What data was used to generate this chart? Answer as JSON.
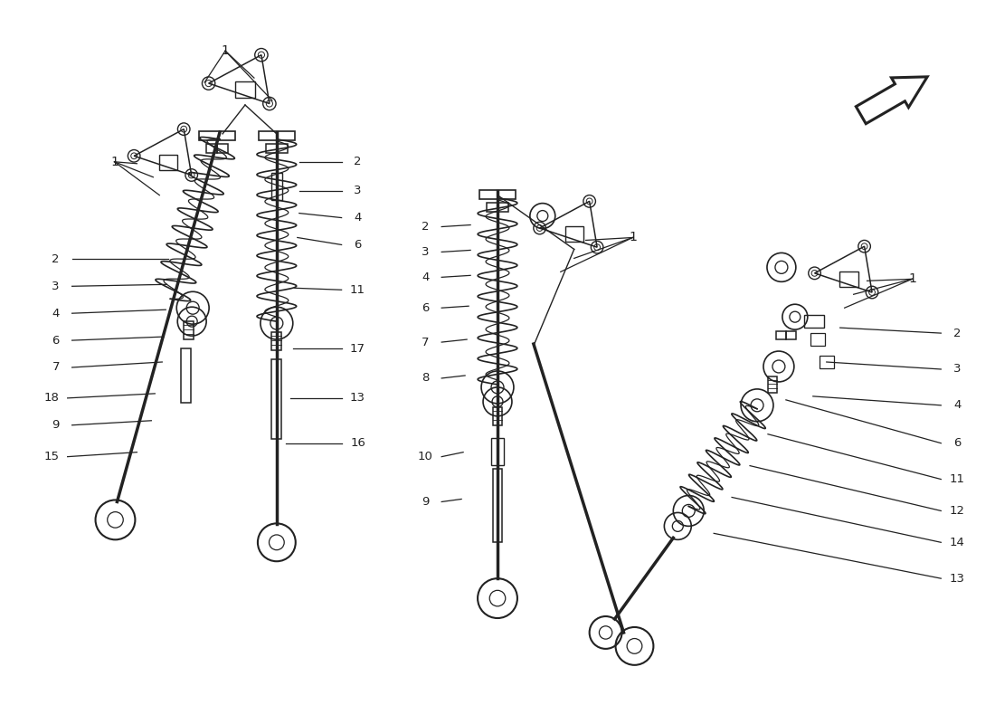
{
  "bg_color": "#ffffff",
  "line_color": "#222222",
  "figsize": [
    11.0,
    8.0
  ],
  "dpi": 100,
  "xlim": [
    0,
    1100
  ],
  "ylim": [
    0,
    800
  ]
}
